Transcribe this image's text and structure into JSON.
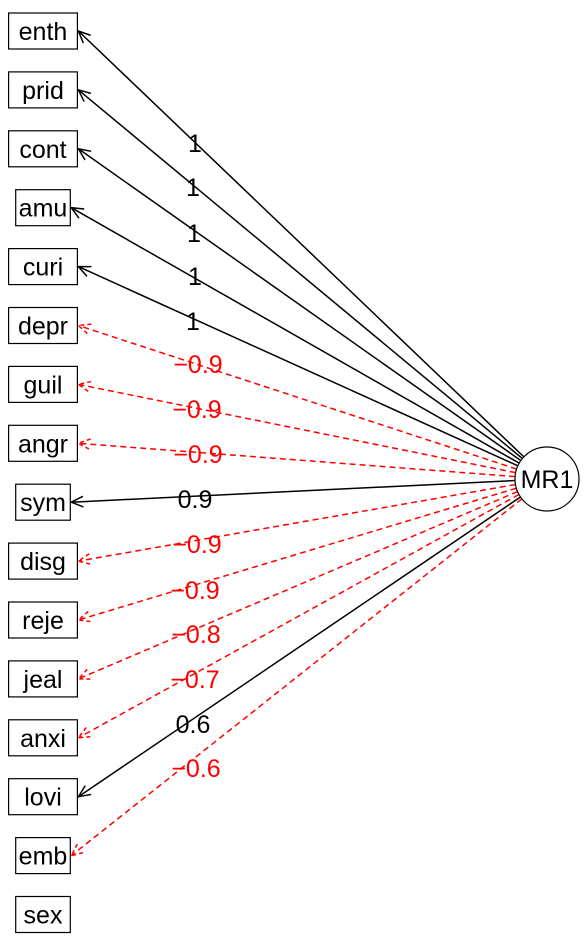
{
  "factor": {
    "label": "MR1"
  },
  "colors": {
    "positive": "#000000",
    "negative": "#ff0000"
  },
  "paths": [
    {
      "variable": "enth",
      "loading": "1",
      "sign": "positive"
    },
    {
      "variable": "prid",
      "loading": "1",
      "sign": "positive"
    },
    {
      "variable": "cont",
      "loading": "1",
      "sign": "positive"
    },
    {
      "variable": "amu",
      "loading": "1",
      "sign": "positive"
    },
    {
      "variable": "curi",
      "loading": "1",
      "sign": "positive"
    },
    {
      "variable": "depr",
      "loading": "−0.9",
      "sign": "negative"
    },
    {
      "variable": "guil",
      "loading": "−0.9",
      "sign": "negative"
    },
    {
      "variable": "angr",
      "loading": "−0.9",
      "sign": "negative"
    },
    {
      "variable": "sym",
      "loading": "0.9",
      "sign": "positive"
    },
    {
      "variable": "disg",
      "loading": "−0.9",
      "sign": "negative"
    },
    {
      "variable": "reje",
      "loading": "−0.9",
      "sign": "negative"
    },
    {
      "variable": "jeal",
      "loading": "−0.8",
      "sign": "negative"
    },
    {
      "variable": "anxi",
      "loading": "−0.7",
      "sign": "negative"
    },
    {
      "variable": "lovi",
      "loading": "0.6",
      "sign": "positive"
    },
    {
      "variable": "emb",
      "loading": "−0.6",
      "sign": "negative"
    }
  ],
  "unlinked_variables": [
    "sex"
  ]
}
